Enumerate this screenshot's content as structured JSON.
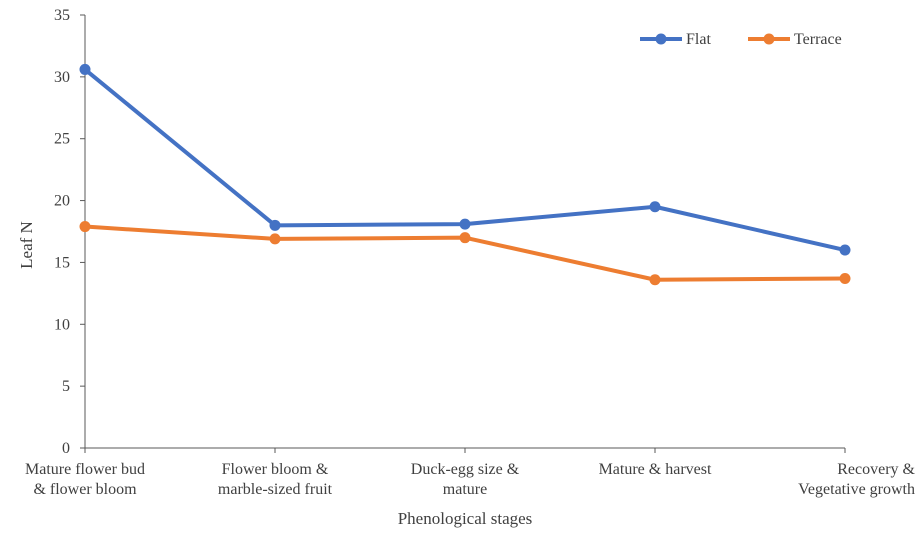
{
  "chart_data": {
    "type": "line",
    "title": "",
    "xlabel": "Phenological stages",
    "ylabel": "Leaf N",
    "ylim": [
      0,
      35
    ],
    "y_ticks": [
      0,
      5,
      10,
      15,
      20,
      25,
      30,
      35
    ],
    "categories": [
      [
        "Mature flower bud",
        "& flower bloom"
      ],
      [
        "Flower bloom &",
        "marble-sized fruit"
      ],
      [
        "Duck-egg size &",
        "mature"
      ],
      [
        "Mature & harvest"
      ],
      [
        "Recovery &",
        "Vegetative growth"
      ]
    ],
    "series": [
      {
        "name": "Flat",
        "color": "#4472C4",
        "values": [
          30.6,
          18.0,
          18.1,
          19.5,
          16.0
        ]
      },
      {
        "name": "Terrace",
        "color": "#ED7D31",
        "values": [
          17.9,
          16.9,
          17.0,
          13.6,
          13.7
        ]
      }
    ],
    "legend_position": "top-right",
    "grid": false
  }
}
